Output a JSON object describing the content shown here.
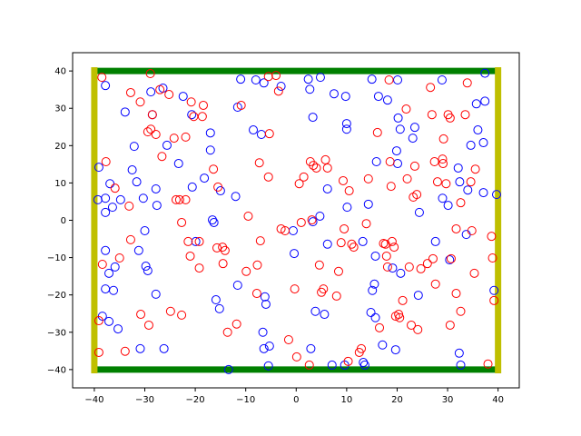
{
  "chart_data": {
    "type": "scatter",
    "xlim": [
      -44.3,
      44.2
    ],
    "ylim": [
      -44.9,
      44.9
    ],
    "xticks": [
      {
        "value": -40,
        "label": "−40"
      },
      {
        "value": -30,
        "label": "−30"
      },
      {
        "value": -20,
        "label": "−20"
      },
      {
        "value": -10,
        "label": "−10"
      },
      0,
      10,
      20,
      30,
      40
    ],
    "yticks": [
      {
        "value": -40,
        "label": "−40"
      },
      {
        "value": -30,
        "label": "−30"
      },
      {
        "value": -20,
        "label": "−20"
      },
      {
        "value": -10,
        "label": "−10"
      },
      0,
      10,
      20,
      30,
      40
    ],
    "walls": [
      {
        "color": "#008000",
        "x": [
          -40,
          40
        ],
        "y": [
          40,
          40
        ]
      },
      {
        "color": "#008000",
        "x": [
          -40,
          40
        ],
        "y": [
          -40,
          -40
        ]
      },
      {
        "color": "#bfbf00",
        "x": [
          -40,
          -40
        ],
        "y": [
          -41,
          41
        ]
      },
      {
        "color": "#bfbf00",
        "x": [
          40,
          40
        ],
        "y": [
          -41,
          41
        ]
      }
    ],
    "series": [
      {
        "color": "#0000ff",
        "x": [
          -39.1,
          -39.3,
          -37.8,
          -37.8,
          -36.9,
          -36.4,
          -37.8,
          -37.1,
          -35.9,
          -37.8,
          -36.2,
          -37.1,
          -38.4,
          -35.3,
          -37.8,
          -33.9,
          -32.1,
          -32.5,
          -31.6,
          -34.8,
          -30.3,
          -30.0,
          -31.2,
          -29.8,
          -29.4,
          -27.8,
          -30.9,
          -26.2,
          -28.8,
          -26.4,
          -28.5,
          -25.6,
          -27.8,
          -27.6,
          -23.3,
          -22.4,
          -20.7,
          -20.6,
          -18.2,
          -17.0,
          -17.0,
          -15.0,
          -12.0,
          -11.6,
          -11.0,
          -8.5,
          -6.9,
          -8.0,
          -6.4,
          -3.0,
          -19.9,
          -16.6,
          -16.3,
          -15.9,
          -15.2,
          -11.6,
          -6.2,
          -6.0,
          -6.6,
          -6.4,
          -5.5,
          -13.4,
          -0.4,
          2.4,
          2.7,
          4.8,
          3.3,
          7.5,
          9.8,
          10.0,
          10.0,
          15.0,
          16.3,
          18.1,
          20.1,
          20.2,
          20.6,
          19.9,
          20.1,
          15.9,
          6.2,
          10.1,
          14.3,
          4.7,
          3.3,
          6.2,
          13.2,
          15.7,
          3.8,
          5.6,
          15.1,
          15.5,
          14.8,
          15.7,
          20.7,
          19.1,
          24.2,
          24.4,
          23.1,
          23.5,
          28.9,
          27.6,
          29.0,
          30.1,
          30.4,
          32.1,
          32.4,
          34.0,
          34.6,
          35.7,
          36.0,
          37.1,
          37.4,
          37.4,
          37.1,
          39.7,
          39.2,
          33.7,
          32.3,
          32.6,
          19.7,
          17.1,
          13.3,
          13.6,
          7.1,
          2.9,
          9.6,
          -5.3,
          -0.6
        ],
        "values": [
          14.2,
          5.5,
          5.9,
          2.1,
          9.8,
          3.5,
          -8.1,
          -14.2,
          -12.5,
          -18.4,
          -18.8,
          -27.1,
          -25.7,
          -29.1,
          36.1,
          29.0,
          19.8,
          13.5,
          10.3,
          5.5,
          5.9,
          -2.8,
          -8.1,
          -12.3,
          -13.5,
          -19.8,
          -34.4,
          -34.4,
          34.4,
          35.4,
          28.3,
          20.1,
          8.4,
          4.0,
          15.2,
          33.2,
          28.3,
          8.9,
          11.3,
          18.8,
          23.4,
          7.9,
          6.4,
          30.3,
          37.8,
          24.2,
          23.0,
          37.6,
          36.8,
          35.9,
          -5.7,
          0.1,
          -0.6,
          -21.3,
          -23.7,
          -17.4,
          -20.5,
          -22.5,
          -30.0,
          -34.4,
          -39.0,
          -40.0,
          -8.9,
          37.8,
          35.1,
          38.3,
          27.6,
          33.9,
          33.2,
          25.9,
          24.4,
          37.8,
          33.2,
          32.2,
          37.6,
          27.4,
          24.4,
          18.6,
          15.2,
          15.7,
          8.4,
          3.5,
          4.3,
          1.1,
          -0.4,
          -6.4,
          -5.7,
          -9.6,
          -24.4,
          -25.2,
          -18.8,
          -17.1,
          -24.7,
          -26.1,
          -14.2,
          -12.8,
          -20.1,
          2.1,
          22.0,
          24.9,
          37.6,
          -5.7,
          5.9,
          4.0,
          -10.6,
          14.0,
          10.3,
          8.1,
          20.1,
          31.2,
          24.2,
          20.8,
          31.9,
          39.4,
          7.4,
          6.9,
          -18.8,
          -3.8,
          -35.6,
          -38.8,
          -34.7,
          -33.4,
          -38.1,
          -38.8,
          -38.8,
          -34.4,
          -38.8,
          -33.7,
          -2.8
        ]
      },
      {
        "color": "#ff0000",
        "x": [
          -38.5,
          -38.4,
          -39.1,
          -39.1,
          -37.7,
          -35.9,
          -35.0,
          -33.9,
          -33.1,
          -32.8,
          -32.8,
          -30.9,
          -30.8,
          -29.4,
          -29.2,
          -28.8,
          -28.9,
          -28.5,
          -27.8,
          -27.0,
          -26.6,
          -25.2,
          -24.9,
          -24.2,
          -23.8,
          -23.1,
          -21.9,
          -21.9,
          -22.7,
          -22.7,
          -21.0,
          -21.4,
          -20.8,
          -20.3,
          -19.2,
          -19.2,
          -18.4,
          -18.6,
          -16.4,
          -15.7,
          -15.5,
          -14.6,
          -14.1,
          -14.5,
          -13.6,
          -11.8,
          -9.9,
          -10.9,
          -9.5,
          -7.7,
          -7.3,
          -7.1,
          -7.8,
          -5.5,
          -5.3,
          -5.5,
          -4.0,
          -3.5,
          -3.0,
          -2.2,
          -1.5,
          -0.3,
          0.1,
          0.6,
          1.0,
          1.5,
          2.6,
          2.8,
          3.1,
          3.4,
          4.0,
          4.6,
          5.0,
          5.4,
          5.8,
          6.2,
          8.0,
          8.4,
          8.9,
          9.3,
          9.5,
          10.5,
          10.3,
          11.0,
          11.4,
          12.5,
          12.9,
          14.3,
          13.9,
          16.1,
          16.5,
          17.3,
          17.7,
          17.9,
          18.1,
          18.4,
          18.6,
          18.8,
          19.0,
          19.4,
          19.7,
          20.3,
          20.5,
          21.1,
          21.8,
          22.0,
          22.4,
          22.8,
          23.2,
          23.5,
          23.9,
          24.1,
          24.7,
          26.0,
          26.6,
          26.9,
          27.1,
          27.6,
          28.0,
          29.0,
          29.1,
          29.2,
          29.7,
          30.1,
          30.5,
          30.5,
          30.7,
          31.7,
          31.7,
          32.6,
          32.6,
          33.5,
          33.9,
          34.6,
          34.8,
          35.5,
          35.3,
          38.0,
          38.7,
          38.9,
          39.2,
          27.4
        ],
        "values": [
          38.3,
          -11.8,
          -26.9,
          -35.4,
          15.7,
          8.6,
          -10.1,
          -35.1,
          3.8,
          -5.2,
          34.2,
          31.7,
          -25.2,
          23.7,
          -28.1,
          24.4,
          39.3,
          28.3,
          23.0,
          35.0,
          17.1,
          33.7,
          -24.4,
          22.0,
          5.5,
          5.5,
          22.3,
          5.5,
          -25.4,
          -0.6,
          -9.6,
          -5.7,
          31.7,
          27.8,
          -5.7,
          -12.8,
          30.8,
          27.8,
          13.7,
          -7.4,
          8.9,
          -7.2,
          -8.1,
          -11.6,
          -30.0,
          -27.8,
          -13.7,
          30.8,
          1.1,
          -12.0,
          15.4,
          -5.5,
          -19.6,
          11.6,
          23.2,
          38.5,
          38.8,
          34.6,
          -2.3,
          -2.8,
          -32.0,
          -18.4,
          -36.6,
          9.8,
          -0.6,
          11.6,
          -38.8,
          15.7,
          0.1,
          14.7,
          14.0,
          -12.0,
          -19.3,
          -18.4,
          16.2,
          14.0,
          -20.3,
          -13.7,
          -6.0,
          10.6,
          -2.3,
          7.9,
          -37.8,
          -6.4,
          -7.2,
          -35.4,
          -34.4,
          11.1,
          -0.9,
          23.5,
          -28.8,
          -6.2,
          -6.4,
          -9.6,
          -12.5,
          37.6,
          15.7,
          9.1,
          -5.7,
          -7.2,
          -25.7,
          -25.2,
          -26.1,
          -21.5,
          29.8,
          11.1,
          -12.5,
          -28.1,
          6.2,
          14.5,
          6.9,
          -29.3,
          -13.0,
          -11.6,
          35.6,
          28.3,
          -10.3,
          -17.1,
          10.3,
          16.4,
          15.2,
          21.8,
          9.8,
          28.3,
          27.4,
          -28.1,
          -10.3,
          -2.3,
          -19.6,
          -24.4,
          4.7,
          28.3,
          36.8,
          10.3,
          -2.8,
          13.7,
          -14.2,
          -38.5,
          -4.3,
          -10.1,
          -21.5,
          15.7
        ]
      }
    ]
  }
}
